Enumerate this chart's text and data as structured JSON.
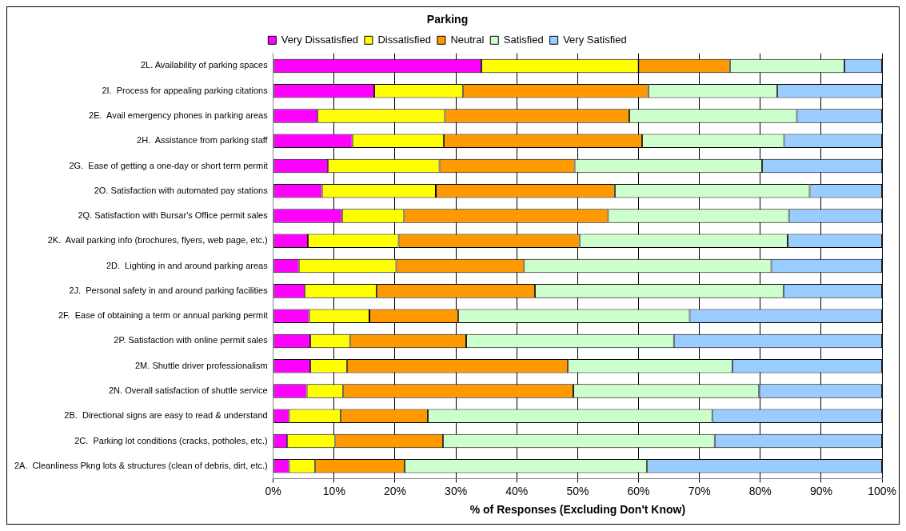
{
  "chart_data": {
    "type": "bar",
    "orientation": "horizontal",
    "stacked": true,
    "title": "Parking",
    "xlabel": "% of Responses (Excluding Don't Know)",
    "legend": "top",
    "grid": "x",
    "categories": [
      "2L. Availability of parking spaces",
      "2I.  Process for appealing parking citations",
      "2E.  Avail emergency phones in parking areas",
      "2H.  Assistance from parking staff",
      "2G.  Ease of getting a one-day or short term permit",
      "2O. Satisfaction with automated pay stations",
      "2Q. Satisfaction with Bursar's Office permit sales",
      "2K.  Avail parking info (brochures, flyers, web page, etc.)",
      "2D.  Lighting in and around parking areas",
      "2J.  Personal safety in and around parking facilities",
      "2F.  Ease of obtaining a term or annual parking permit",
      "2P. Satisfaction with online permit sales",
      "2M. Shuttle driver professionalism",
      "2N. Overall satisfaction of shuttle service",
      "2B.  Directional signs are easy to read & understand",
      "2C.  Parking lot conditions (cracks, potholes, etc.)",
      "2A.  Cleanliness Pkng lots & structures (clean of debris, dirt, etc.)"
    ],
    "series": [
      {
        "name": "Very Dissatisfied",
        "color": "#ff00ff",
        "values": [
          34.2,
          16.6,
          7.3,
          13,
          9,
          8,
          11.3,
          5.7,
          4.2,
          5.2,
          5.9,
          6.1,
          6.1,
          5.5,
          2.6,
          2.3,
          2.6
        ]
      },
      {
        "name": "Dissatisfied",
        "color": "#ffff00",
        "values": [
          25.8,
          14.6,
          20.9,
          15,
          18.3,
          18.7,
          10.2,
          14.9,
          16,
          11.8,
          9.9,
          6.5,
          6,
          6,
          8.5,
          7.9,
          4.3
        ]
      },
      {
        "name": "Neutral",
        "color": "#ff9900",
        "values": [
          15,
          30.4,
          30.3,
          32.6,
          22.2,
          29.4,
          33.5,
          29.7,
          21,
          26,
          14.6,
          19.1,
          36.3,
          37.8,
          14.3,
          17.7,
          14.7
        ]
      },
      {
        "name": "Satisfied",
        "color": "#ccffcc",
        "values": [
          18.8,
          21.2,
          27.5,
          23.3,
          30.8,
          32,
          29.7,
          34.2,
          40.6,
          40.8,
          38,
          34.1,
          27,
          30.5,
          46.7,
          44.6,
          39.8
        ]
      },
      {
        "name": "Very Satisfied",
        "color": "#99ccff",
        "values": [
          6.2,
          17.2,
          14,
          16.1,
          19.7,
          11.9,
          15.3,
          15.5,
          18.2,
          16.2,
          31.6,
          34.2,
          24.6,
          20.2,
          27.9,
          27.5,
          38.6
        ]
      }
    ],
    "xlim": [
      0,
      100
    ],
    "xticks": [
      {
        "value": 0,
        "label": "0%"
      },
      {
        "value": 10,
        "label": "10%"
      },
      {
        "value": 20,
        "label": "20%"
      },
      {
        "value": 30,
        "label": "30%"
      },
      {
        "value": 40,
        "label": "40%"
      },
      {
        "value": 50,
        "label": "50%"
      },
      {
        "value": 60,
        "label": "60%"
      },
      {
        "value": 70,
        "label": "70%"
      },
      {
        "value": 80,
        "label": "80%"
      },
      {
        "value": 90,
        "label": "90%"
      },
      {
        "value": 100,
        "label": "100%"
      }
    ]
  }
}
